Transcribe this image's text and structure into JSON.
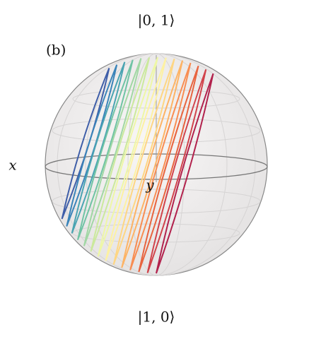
{
  "panel_label": "(b)",
  "axes": {
    "top": "|0, 1⟩",
    "bottom": "|1, 0⟩",
    "x": "x",
    "y": "y"
  }
}
